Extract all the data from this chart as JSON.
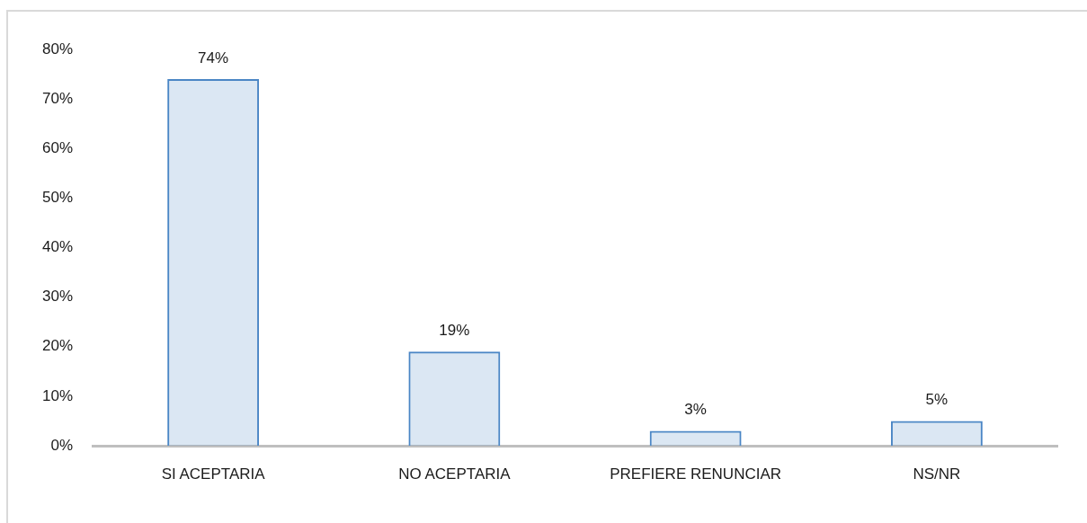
{
  "chart_data": {
    "type": "bar",
    "categories": [
      "SI ACEPTARIA",
      "NO ACEPTARIA",
      "PREFIERE RENUNCIAR",
      "NS/NR"
    ],
    "values": [
      74,
      19,
      3,
      5
    ],
    "color": "#4a86c5",
    "value_labels": [
      "74%",
      "19%",
      "3%",
      "5%"
    ],
    "ylim": [
      0,
      80
    ],
    "yticks": [
      {
        "value": 0,
        "label": "0%"
      },
      {
        "value": 10,
        "label": "10%"
      },
      {
        "value": 20,
        "label": "20%"
      },
      {
        "value": 30,
        "label": "30%"
      },
      {
        "value": 40,
        "label": "40%"
      },
      {
        "value": 50,
        "label": "50%"
      },
      {
        "value": 60,
        "label": "60%"
      },
      {
        "value": 70,
        "label": "70%"
      },
      {
        "value": 80,
        "label": "80%"
      }
    ],
    "grid": false,
    "legend": false
  }
}
